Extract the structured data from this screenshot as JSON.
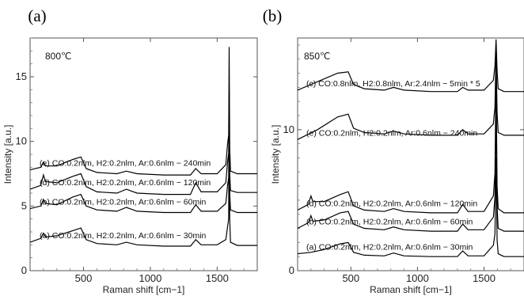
{
  "chart_data": [
    {
      "type": "line",
      "panel_label": "(a)",
      "annotation": "800℃",
      "xlabel": "Raman shift  [cm−1]",
      "ylabel": "Intensity  [a.u.]",
      "xlim": [
        100,
        1800
      ],
      "ylim": [
        0,
        18
      ],
      "xticks": [
        500,
        1000,
        1500
      ],
      "xtick_labels": [
        "500",
        "1000",
        "1500"
      ],
      "yticks": [
        0,
        5,
        10,
        15
      ],
      "ytick_labels": [
        "0",
        "5",
        "10",
        "15"
      ],
      "series": [
        {
          "label": "(a) CO:0.2nlm, H2:0.2nlm, Ar:0.6nlm − 30min",
          "baseline": 2.2,
          "points": [
            [
              100,
              2.2
            ],
            [
              180,
              2.5
            ],
            [
              200,
              2.9
            ],
            [
              215,
              2.6
            ],
            [
              300,
              2.7
            ],
            [
              420,
              3.1
            ],
            [
              480,
              3.3
            ],
            [
              520,
              2.4
            ],
            [
              600,
              2.1
            ],
            [
              750,
              2.0
            ],
            [
              820,
              2.2
            ],
            [
              900,
              2.0
            ],
            [
              1100,
              1.9
            ],
            [
              1300,
              1.9
            ],
            [
              1340,
              2.4
            ],
            [
              1380,
              2.0
            ],
            [
              1500,
              2.0
            ],
            [
              1565,
              2.4
            ],
            [
              1578,
              3.4
            ],
            [
              1586,
              4.0
            ],
            [
              1590,
              14.0
            ],
            [
              1594,
              4.0
            ],
            [
              1600,
              2.2
            ],
            [
              1650,
              1.95
            ],
            [
              1800,
              1.95
            ]
          ]
        },
        {
          "label": "(b) CO:0.2nlm, H2:0.2nlm, Ar:0.6nlm − 60min",
          "baseline": 4.8,
          "points": [
            [
              100,
              4.8
            ],
            [
              180,
              5.0
            ],
            [
              200,
              5.5
            ],
            [
              215,
              5.2
            ],
            [
              300,
              5.1
            ],
            [
              420,
              5.7
            ],
            [
              480,
              5.9
            ],
            [
              520,
              5.0
            ],
            [
              600,
              4.7
            ],
            [
              750,
              4.6
            ],
            [
              820,
              4.9
            ],
            [
              900,
              4.6
            ],
            [
              1100,
              4.5
            ],
            [
              1300,
              4.5
            ],
            [
              1340,
              5.1
            ],
            [
              1380,
              4.6
            ],
            [
              1500,
              4.6
            ],
            [
              1565,
              5.2
            ],
            [
              1578,
              6.6
            ],
            [
              1586,
              7.2
            ],
            [
              1590,
              10.5
            ],
            [
              1594,
              6.0
            ],
            [
              1600,
              4.7
            ],
            [
              1650,
              4.5
            ],
            [
              1800,
              4.5
            ]
          ]
        },
        {
          "label": "(d) CO:0.2nlm, H2:0.2nlm, Ar:0.6nlm − 120min",
          "baseline": 6.3,
          "points": [
            [
              100,
              6.3
            ],
            [
              180,
              6.6
            ],
            [
              200,
              7.4
            ],
            [
              215,
              6.9
            ],
            [
              300,
              6.8
            ],
            [
              420,
              7.3
            ],
            [
              480,
              7.5
            ],
            [
              520,
              6.5
            ],
            [
              600,
              6.1
            ],
            [
              750,
              6.0
            ],
            [
              820,
              6.3
            ],
            [
              900,
              6.0
            ],
            [
              1100,
              5.9
            ],
            [
              1300,
              5.9
            ],
            [
              1340,
              6.8
            ],
            [
              1380,
              6.1
            ],
            [
              1500,
              6.1
            ],
            [
              1565,
              6.8
            ],
            [
              1578,
              8.4
            ],
            [
              1586,
              9.1
            ],
            [
              1590,
              11.8
            ],
            [
              1594,
              7.5
            ],
            [
              1600,
              6.2
            ],
            [
              1650,
              6.05
            ],
            [
              1800,
              6.05
            ]
          ]
        },
        {
          "label": "(e) CO:0.2nlm, H2:0.2nlm, Ar:0.6nlm − 240min",
          "baseline": 7.8,
          "points": [
            [
              100,
              7.8
            ],
            [
              180,
              8.0
            ],
            [
              200,
              8.4
            ],
            [
              215,
              8.1
            ],
            [
              300,
              8.1
            ],
            [
              420,
              8.6
            ],
            [
              480,
              8.8
            ],
            [
              520,
              7.9
            ],
            [
              600,
              7.6
            ],
            [
              750,
              7.5
            ],
            [
              820,
              7.7
            ],
            [
              900,
              7.5
            ],
            [
              1100,
              7.4
            ],
            [
              1300,
              7.4
            ],
            [
              1340,
              7.9
            ],
            [
              1380,
              7.5
            ],
            [
              1500,
              7.5
            ],
            [
              1565,
              8.2
            ],
            [
              1578,
              9.8
            ],
            [
              1586,
              10.5
            ],
            [
              1590,
              17.3
            ],
            [
              1594,
              9.5
            ],
            [
              1600,
              7.7
            ],
            [
              1650,
              7.5
            ],
            [
              1800,
              7.5
            ]
          ]
        }
      ]
    },
    {
      "type": "line",
      "panel_label": "(b)",
      "annotation": "850℃",
      "xlabel": "Raman shift  [cm−1]",
      "ylabel": "Intensity  [a.u.]",
      "xlim": [
        100,
        1800
      ],
      "ylim": [
        0,
        16.5
      ],
      "xticks": [
        500,
        1000,
        1500
      ],
      "xtick_labels": [
        "500",
        "1000",
        "1500"
      ],
      "yticks": [
        0,
        10
      ],
      "ytick_labels": [
        "0",
        "10"
      ],
      "series": [
        {
          "label": "(a) CO:0.2nlm, H2:0.2nlm, Ar:0.6nlm − 30min",
          "baseline": 1.2,
          "points": [
            [
              100,
              1.2
            ],
            [
              200,
              1.3
            ],
            [
              300,
              1.5
            ],
            [
              420,
              1.9
            ],
            [
              480,
              2.0
            ],
            [
              520,
              1.3
            ],
            [
              600,
              1.1
            ],
            [
              750,
              1.05
            ],
            [
              820,
              1.25
            ],
            [
              900,
              1.05
            ],
            [
              1100,
              1.0
            ],
            [
              1300,
              1.0
            ],
            [
              1340,
              1.4
            ],
            [
              1380,
              1.05
            ],
            [
              1500,
              1.05
            ],
            [
              1570,
              1.8
            ],
            [
              1582,
              2.6
            ],
            [
              1590,
              8.0
            ],
            [
              1598,
              2.2
            ],
            [
              1606,
              1.2
            ],
            [
              1650,
              1.0
            ],
            [
              1800,
              1.0
            ]
          ]
        },
        {
          "label": "(b) CO:0.2nlm, H2:0.2nlm, Ar:0.6nlm − 60min",
          "baseline": 3.0,
          "points": [
            [
              100,
              3.0
            ],
            [
              180,
              3.4
            ],
            [
              200,
              3.9
            ],
            [
              215,
              3.5
            ],
            [
              300,
              3.6
            ],
            [
              420,
              4.1
            ],
            [
              480,
              4.2
            ],
            [
              520,
              3.3
            ],
            [
              600,
              3.0
            ],
            [
              750,
              2.9
            ],
            [
              820,
              3.1
            ],
            [
              900,
              2.9
            ],
            [
              1100,
              2.8
            ],
            [
              1300,
              2.8
            ],
            [
              1340,
              3.3
            ],
            [
              1380,
              2.9
            ],
            [
              1500,
              2.9
            ],
            [
              1570,
              3.8
            ],
            [
              1582,
              5.2
            ],
            [
              1590,
              11.5
            ],
            [
              1598,
              4.5
            ],
            [
              1606,
              3.0
            ],
            [
              1650,
              2.8
            ],
            [
              1800,
              2.8
            ]
          ]
        },
        {
          "label": "(d) CO:0.2nlm, H2:0.2nlm, Ar:0.6nlm − 120min",
          "baseline": 4.3,
          "points": [
            [
              100,
              4.3
            ],
            [
              180,
              4.7
            ],
            [
              200,
              5.3
            ],
            [
              215,
              4.9
            ],
            [
              300,
              4.9
            ],
            [
              420,
              5.4
            ],
            [
              480,
              5.6
            ],
            [
              520,
              4.6
            ],
            [
              600,
              4.3
            ],
            [
              750,
              4.2
            ],
            [
              820,
              4.4
            ],
            [
              900,
              4.2
            ],
            [
              1100,
              4.1
            ],
            [
              1300,
              4.1
            ],
            [
              1340,
              4.7
            ],
            [
              1380,
              4.2
            ],
            [
              1500,
              4.2
            ],
            [
              1570,
              5.3
            ],
            [
              1582,
              6.9
            ],
            [
              1590,
              14.0
            ],
            [
              1598,
              6.0
            ],
            [
              1606,
              4.4
            ],
            [
              1650,
              4.1
            ],
            [
              1800,
              4.1
            ]
          ]
        },
        {
          "label": "(e) CO:0.2nlm, H2:0.2nlm, Ar:0.6nlm − 240min",
          "baseline": 9.3,
          "points": [
            [
              100,
              9.3
            ],
            [
              250,
              10.0
            ],
            [
              400,
              10.9
            ],
            [
              480,
              11.1
            ],
            [
              520,
              10.1
            ],
            [
              600,
              9.8
            ],
            [
              750,
              9.7
            ],
            [
              820,
              9.9
            ],
            [
              900,
              9.7
            ],
            [
              1100,
              9.6
            ],
            [
              1300,
              9.6
            ],
            [
              1340,
              10.0
            ],
            [
              1380,
              9.7
            ],
            [
              1500,
              9.7
            ],
            [
              1570,
              10.4
            ],
            [
              1582,
              11.6
            ],
            [
              1590,
              15.5
            ],
            [
              1598,
              11.2
            ],
            [
              1606,
              9.8
            ],
            [
              1650,
              9.6
            ],
            [
              1800,
              9.6
            ]
          ]
        },
        {
          "label": "(c) CO:0.8nlm, H2:0.8nlm, Ar:2.4nlm − 5min * 5",
          "baseline": 12.8,
          "points": [
            [
              100,
              12.8
            ],
            [
              250,
              13.4
            ],
            [
              400,
              14.0
            ],
            [
              480,
              14.1
            ],
            [
              520,
              13.2
            ],
            [
              600,
              12.9
            ],
            [
              750,
              12.8
            ],
            [
              820,
              13.0
            ],
            [
              900,
              12.8
            ],
            [
              1100,
              12.7
            ],
            [
              1300,
              12.7
            ],
            [
              1340,
              13.0
            ],
            [
              1380,
              12.8
            ],
            [
              1500,
              12.8
            ],
            [
              1570,
              13.5
            ],
            [
              1582,
              14.5
            ],
            [
              1590,
              16.4
            ],
            [
              1598,
              14.2
            ],
            [
              1606,
              12.9
            ],
            [
              1650,
              12.7
            ],
            [
              1800,
              12.7
            ]
          ]
        }
      ]
    }
  ]
}
